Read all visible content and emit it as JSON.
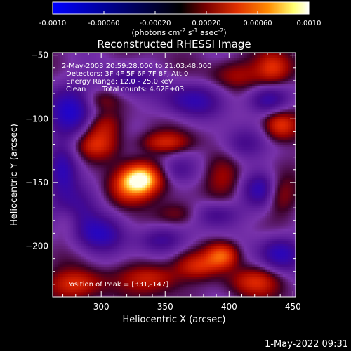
{
  "colorbar": {
    "ticks": [
      "-0.0010",
      "-0.00060",
      "-0.00020",
      "0.00020",
      "0.00060",
      "0.0010"
    ],
    "unit_main": "(photons cm",
    "unit_sup1": "-2",
    "unit_mid1": " s",
    "unit_sup2": "-1",
    "unit_mid2": " asec",
    "unit_sup3": "-2",
    "unit_end": ")",
    "range": [
      -0.001,
      0.001
    ],
    "colors": [
      "#0000ff",
      "#000000",
      "#7a0000",
      "#e03000",
      "#ff8a00",
      "#ffff70",
      "#ffffff"
    ]
  },
  "chart_data": {
    "type": "heatmap",
    "title": "Reconstructed RHESSI Image",
    "xlabel": "Heliocentric X (arcsec)",
    "ylabel": "Heliocentric Y (arcsec)",
    "xlim": [
      262,
      452
    ],
    "ylim": [
      -240,
      -48
    ],
    "xticks": [
      300,
      350,
      400,
      450
    ],
    "yticks": [
      -50,
      -100,
      -150,
      -200
    ],
    "blobs": [
      {
        "x": 331,
        "y": -147,
        "amp": 1.0,
        "sx": 10,
        "sy": 8
      },
      {
        "x": 320,
        "y": -155,
        "amp": 0.55,
        "sx": 12,
        "sy": 10
      },
      {
        "x": 350,
        "y": -118,
        "amp": 0.45,
        "sx": 14,
        "sy": 6
      },
      {
        "x": 295,
        "y": -120,
        "amp": 0.45,
        "sx": 12,
        "sy": 8
      },
      {
        "x": 302,
        "y": -105,
        "amp": 0.35,
        "sx": 10,
        "sy": 8
      },
      {
        "x": 395,
        "y": -207,
        "amp": 0.65,
        "sx": 9,
        "sy": 7
      },
      {
        "x": 375,
        "y": -215,
        "amp": 0.4,
        "sx": 12,
        "sy": 7
      },
      {
        "x": 340,
        "y": -225,
        "amp": 0.45,
        "sx": 16,
        "sy": 8
      },
      {
        "x": 280,
        "y": -230,
        "amp": 0.5,
        "sx": 16,
        "sy": 8
      },
      {
        "x": 420,
        "y": -228,
        "amp": 0.45,
        "sx": 14,
        "sy": 8
      },
      {
        "x": 440,
        "y": -105,
        "amp": 0.55,
        "sx": 9,
        "sy": 8
      },
      {
        "x": 435,
        "y": -60,
        "amp": 0.55,
        "sx": 10,
        "sy": 9
      },
      {
        "x": 405,
        "y": -65,
        "amp": 0.3,
        "sx": 14,
        "sy": 8
      },
      {
        "x": 395,
        "y": -145,
        "amp": 0.3,
        "sx": 10,
        "sy": 12
      },
      {
        "x": 360,
        "y": -175,
        "amp": 0.3,
        "sx": 12,
        "sy": 7
      },
      {
        "x": 440,
        "y": -160,
        "amp": 0.3,
        "sx": 8,
        "sy": 10
      },
      {
        "x": 273,
        "y": -180,
        "amp": 0.3,
        "sx": 8,
        "sy": 10
      },
      {
        "x": 300,
        "y": -85,
        "amp": 0.2,
        "sx": 10,
        "sy": 6
      },
      {
        "x": 275,
        "y": -95,
        "amp": -0.55,
        "sx": 14,
        "sy": 16
      },
      {
        "x": 280,
        "y": -170,
        "amp": -0.5,
        "sx": 14,
        "sy": 14
      },
      {
        "x": 300,
        "y": -190,
        "amp": -0.45,
        "sx": 14,
        "sy": 10
      },
      {
        "x": 370,
        "y": -85,
        "amp": -0.45,
        "sx": 18,
        "sy": 10
      },
      {
        "x": 430,
        "y": -85,
        "amp": -0.45,
        "sx": 12,
        "sy": 8
      },
      {
        "x": 440,
        "y": -205,
        "amp": -0.55,
        "sx": 12,
        "sy": 10
      },
      {
        "x": 425,
        "y": -155,
        "amp": -0.45,
        "sx": 10,
        "sy": 10
      },
      {
        "x": 390,
        "y": -175,
        "amp": -0.4,
        "sx": 14,
        "sy": 8
      },
      {
        "x": 345,
        "y": -195,
        "amp": -0.4,
        "sx": 14,
        "sy": 8
      },
      {
        "x": 270,
        "y": -140,
        "amp": -0.4,
        "sx": 8,
        "sy": 14
      },
      {
        "x": 410,
        "y": -120,
        "amp": -0.35,
        "sx": 12,
        "sy": 10
      },
      {
        "x": 320,
        "y": -70,
        "amp": -0.35,
        "sx": 16,
        "sy": 8
      },
      {
        "x": 360,
        "y": -140,
        "amp": -0.25,
        "sx": 10,
        "sy": 8
      }
    ],
    "peak": {
      "x": 331,
      "y": -147
    }
  },
  "info": {
    "time_range": "2-May-2003 20:59:28.000 to 21:03:48.000",
    "detectors": "Detectors: 3F 4F 5F 6F 7F 8F, Att 0",
    "energy_range": "Energy Range: 12.0 - 25.0 keV",
    "method": "Clean",
    "total_counts": "Total counts: 4.62E+03",
    "peak_text": "Position of Peak = [331,-147]"
  },
  "footer": {
    "datetime": "1-May-2022 09:31"
  }
}
